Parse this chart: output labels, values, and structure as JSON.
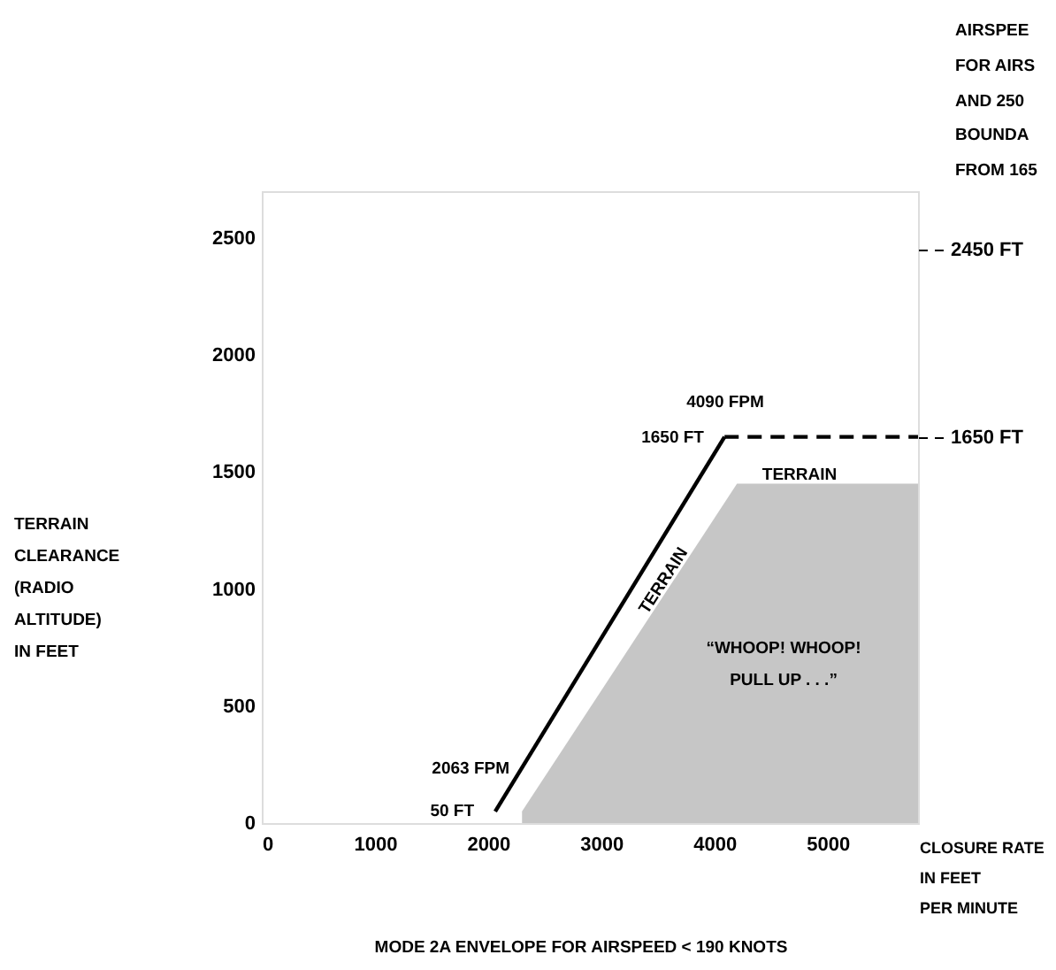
{
  "chart_data": {
    "type": "line",
    "title": "MODE 2A ENVELOPE FOR AIRSPEED < 190 KNOTS",
    "xlabel": "CLOSURE RATE\nIN FEET\nPER MINUTE",
    "xlim": [
      0,
      5800
    ],
    "xticks": [
      0,
      1000,
      2000,
      3000,
      4000,
      5000
    ],
    "ylim": [
      0,
      2700
    ],
    "yticks": [
      0,
      500,
      1000,
      1500,
      2000,
      2500
    ],
    "y2lim": [
      0,
      2700
    ],
    "y2ticks": [
      {
        "value": 2450,
        "label": "2450 FT"
      },
      {
        "value": 1650,
        "label": "1650 FT"
      }
    ],
    "grid": false,
    "series": [
      {
        "type": "area",
        "color": "#a0a0a0",
        "x": [
          2300,
          4200,
          5800
        ],
        "values": [
          50,
          1450,
          1450
        ]
      },
      {
        "color": "#000000",
        "line_style": "solid",
        "x": [
          2063,
          4090
        ],
        "values": [
          50,
          1650
        ]
      },
      {
        "color": "#000000",
        "line_style": "dashed",
        "axis": "y2",
        "x": [
          4090,
          5800
        ],
        "values": [
          1650,
          1650
        ]
      }
    ],
    "annotations": [
      "4090 FPM",
      "1650 FT",
      "2063 FPM",
      "50 FT",
      "TERRAIN\nCLEARANCE\n(RADIO\nALTITUDE)\nIN FEET",
      "TERRAIN",
      "TERRAIN",
      "“WHOOP! WHOOP!\nPULL UP . . .”",
      "AIRSPEE",
      "FOR AIRS",
      "AND 250",
      "BOUNDA",
      "FROM 165"
    ]
  }
}
